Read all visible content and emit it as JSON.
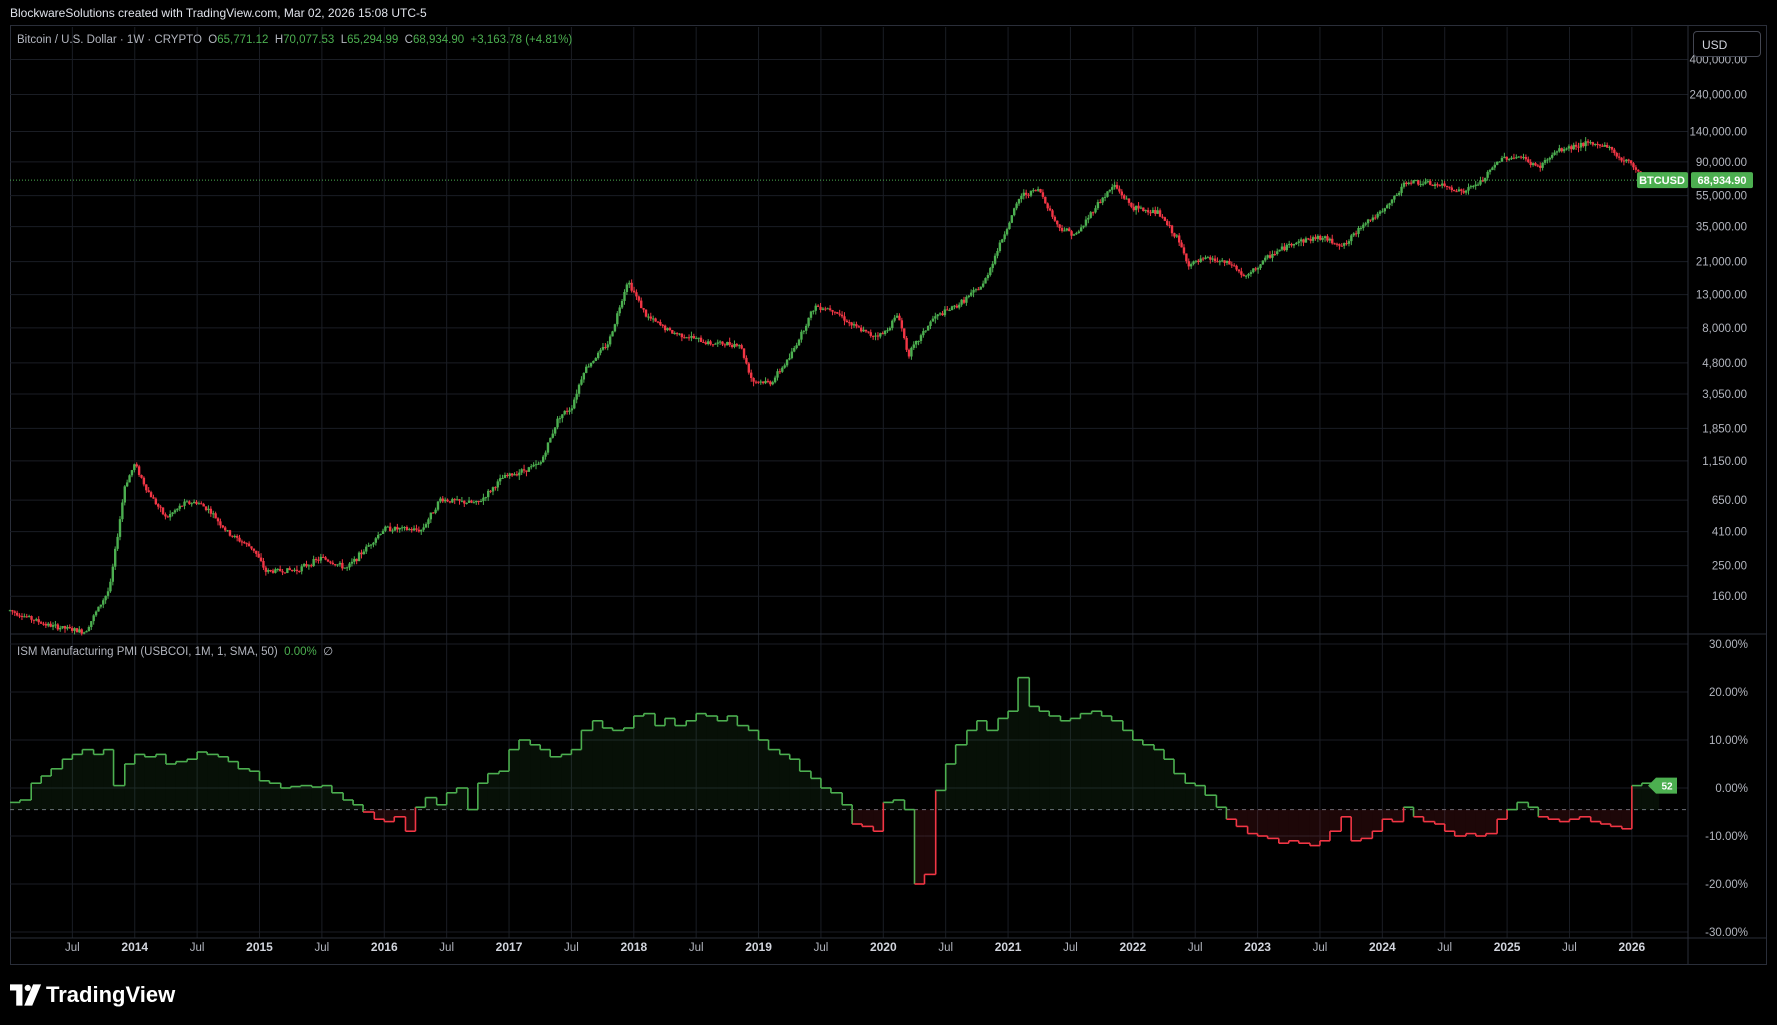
{
  "caption": "BlockwareSolutions created with TradingView.com, Mar 02, 2026 15:08 UTC-5",
  "legend_main": {
    "symbol": "Bitcoin / U.S. Dollar · 1W · CRYPTO",
    "o_label": "O",
    "o_value": "65,771.12",
    "h_label": "H",
    "h_value": "70,077.53",
    "l_label": "L",
    "l_value": "65,294.99",
    "c_label": "C",
    "c_value": "68,934.90",
    "change": "+3,163.78 (+4.81%)"
  },
  "legend_indicator": {
    "name": "ISM Manufacturing PMI (USBCOI, 1M, 1, SMA, 50)",
    "value": "0.00%",
    "extra": "∅"
  },
  "currency_button": "USD",
  "price_tag": {
    "symbol": "BTCUSD",
    "value": "68,934.90"
  },
  "pmi_tag": "52",
  "brand": "TradingView",
  "colors": {
    "up": "#4caf50",
    "down": "#f23645",
    "background": "#000000",
    "grid": "#1a1d24"
  },
  "chart_data": [
    {
      "type": "candlestick",
      "title": "Bitcoin / U.S. Dollar",
      "scale": "log",
      "y_ticks": [
        "400,000.00",
        "240,000.00",
        "140,000.00",
        "90,000.00",
        "55,000.00",
        "35,000.00",
        "21,000.00",
        "13,000.00",
        "8,000.00",
        "4,800.00",
        "3,050.00",
        "1,850.00",
        "1,150.00",
        "650.00",
        "410.00",
        "250.00",
        "160.00"
      ],
      "y_tick_values": [
        400000,
        240000,
        140000,
        90000,
        55000,
        35000,
        21000,
        13000,
        8000,
        4800,
        3050,
        1850,
        1150,
        650,
        410,
        250,
        160
      ],
      "x_ticks": [
        "Jul",
        "2014",
        "Jul",
        "2015",
        "Jul",
        "2016",
        "Jul",
        "2017",
        "Jul",
        "2018",
        "Jul",
        "2019",
        "Jul",
        "2020",
        "Jul",
        "2021",
        "Jul",
        "2022",
        "Jul",
        "2023",
        "Jul",
        "2024",
        "Jul",
        "2025",
        "Jul",
        "2026"
      ],
      "x_tick_years": [
        2013.5,
        2014,
        2014.5,
        2015,
        2015.5,
        2016,
        2016.5,
        2017,
        2017.5,
        2018,
        2018.5,
        2019,
        2019.5,
        2020,
        2020.5,
        2021,
        2021.5,
        2022,
        2022.5,
        2023,
        2023.5,
        2024,
        2024.5,
        2025,
        2025.5,
        2026
      ],
      "last_price": 68934.9,
      "anchors": [
        [
          2013.0,
          130
        ],
        [
          2013.3,
          105
        ],
        [
          2013.6,
          95
        ],
        [
          2013.8,
          180
        ],
        [
          2013.92,
          800
        ],
        [
          2014.0,
          1100
        ],
        [
          2014.1,
          750
        ],
        [
          2014.25,
          500
        ],
        [
          2014.4,
          620
        ],
        [
          2014.5,
          630
        ],
        [
          2014.6,
          560
        ],
        [
          2014.75,
          400
        ],
        [
          2014.95,
          320
        ],
        [
          2015.05,
          230
        ],
        [
          2015.3,
          235
        ],
        [
          2015.5,
          280
        ],
        [
          2015.7,
          240
        ],
        [
          2015.85,
          320
        ],
        [
          2016.0,
          430
        ],
        [
          2016.3,
          420
        ],
        [
          2016.45,
          660
        ],
        [
          2016.55,
          640
        ],
        [
          2016.75,
          620
        ],
        [
          2016.95,
          900
        ],
        [
          2017.05,
          960
        ],
        [
          2017.25,
          1100
        ],
        [
          2017.4,
          2200
        ],
        [
          2017.5,
          2500
        ],
        [
          2017.6,
          4300
        ],
        [
          2017.8,
          6500
        ],
        [
          2017.95,
          16000
        ],
        [
          2018.0,
          13500
        ],
        [
          2018.1,
          9500
        ],
        [
          2018.3,
          7500
        ],
        [
          2018.45,
          7000
        ],
        [
          2018.6,
          6400
        ],
        [
          2018.85,
          6300
        ],
        [
          2018.95,
          3700
        ],
        [
          2019.1,
          3600
        ],
        [
          2019.25,
          5200
        ],
        [
          2019.45,
          11000
        ],
        [
          2019.6,
          10500
        ],
        [
          2019.75,
          8300
        ],
        [
          2019.9,
          7200
        ],
        [
          2020.0,
          7300
        ],
        [
          2020.12,
          9800
        ],
        [
          2020.2,
          5400
        ],
        [
          2020.4,
          9200
        ],
        [
          2020.6,
          11200
        ],
        [
          2020.8,
          15000
        ],
        [
          2020.95,
          29000
        ],
        [
          2021.1,
          55000
        ],
        [
          2021.25,
          60000
        ],
        [
          2021.4,
          35000
        ],
        [
          2021.55,
          31000
        ],
        [
          2021.7,
          47000
        ],
        [
          2021.85,
          64000
        ],
        [
          2022.0,
          46000
        ],
        [
          2022.2,
          43000
        ],
        [
          2022.35,
          30000
        ],
        [
          2022.45,
          20000
        ],
        [
          2022.6,
          22000
        ],
        [
          2022.8,
          20000
        ],
        [
          2022.9,
          16500
        ],
        [
          2023.1,
          23000
        ],
        [
          2023.3,
          28000
        ],
        [
          2023.5,
          30000
        ],
        [
          2023.7,
          26500
        ],
        [
          2023.85,
          37000
        ],
        [
          2024.0,
          43000
        ],
        [
          2024.2,
          68000
        ],
        [
          2024.5,
          63000
        ],
        [
          2024.65,
          58000
        ],
        [
          2024.8,
          68000
        ],
        [
          2024.95,
          95000
        ],
        [
          2025.1,
          97000
        ],
        [
          2025.25,
          83000
        ],
        [
          2025.4,
          105000
        ],
        [
          2025.6,
          117000
        ],
        [
          2025.8,
          114000
        ],
        [
          2025.9,
          95000
        ],
        [
          2026.0,
          88000
        ],
        [
          2026.1,
          70000
        ],
        [
          2026.17,
          68934.9
        ]
      ]
    },
    {
      "type": "area",
      "title": "ISM Manufacturing PMI",
      "y_ticks": [
        "30.00%",
        "20.00%",
        "10.00%",
        "0.00%",
        "-10.00%",
        "-20.00%",
        "-30.00%"
      ],
      "y_tick_values": [
        30,
        20,
        10,
        0,
        -10,
        -20,
        -30
      ],
      "baseline": -4.5,
      "points": [
        [
          2013.0,
          -3
        ],
        [
          2013.08,
          -2.5
        ],
        [
          2013.17,
          1
        ],
        [
          2013.25,
          2.5
        ],
        [
          2013.33,
          4
        ],
        [
          2013.42,
          6
        ],
        [
          2013.5,
          7
        ],
        [
          2013.58,
          8
        ],
        [
          2013.67,
          7
        ],
        [
          2013.75,
          8
        ],
        [
          2013.83,
          0.5
        ],
        [
          2013.92,
          5
        ],
        [
          2014.0,
          7
        ],
        [
          2014.08,
          6.5
        ],
        [
          2014.17,
          7
        ],
        [
          2014.25,
          5
        ],
        [
          2014.33,
          5.5
        ],
        [
          2014.42,
          6
        ],
        [
          2014.5,
          7.5
        ],
        [
          2014.58,
          7
        ],
        [
          2014.67,
          6.5
        ],
        [
          2014.75,
          5.5
        ],
        [
          2014.83,
          4
        ],
        [
          2014.92,
          3.5
        ],
        [
          2015.0,
          1.5
        ],
        [
          2015.08,
          1
        ],
        [
          2015.17,
          0
        ],
        [
          2015.25,
          0.3
        ],
        [
          2015.33,
          0.5
        ],
        [
          2015.42,
          0.2
        ],
        [
          2015.5,
          0.5
        ],
        [
          2015.58,
          -1
        ],
        [
          2015.67,
          -2.5
        ],
        [
          2015.75,
          -3.5
        ],
        [
          2015.83,
          -5
        ],
        [
          2015.92,
          -6.5
        ],
        [
          2016.0,
          -7
        ],
        [
          2016.08,
          -6
        ],
        [
          2016.17,
          -9
        ],
        [
          2016.25,
          -4
        ],
        [
          2016.33,
          -2
        ],
        [
          2016.42,
          -3.5
        ],
        [
          2016.5,
          -1
        ],
        [
          2016.58,
          0
        ],
        [
          2016.67,
          -4.5
        ],
        [
          2016.75,
          1
        ],
        [
          2016.83,
          3
        ],
        [
          2016.92,
          3.5
        ],
        [
          2017.0,
          8
        ],
        [
          2017.08,
          10
        ],
        [
          2017.17,
          9
        ],
        [
          2017.25,
          8
        ],
        [
          2017.33,
          6.5
        ],
        [
          2017.42,
          7
        ],
        [
          2017.5,
          8
        ],
        [
          2017.58,
          12
        ],
        [
          2017.67,
          14
        ],
        [
          2017.75,
          12.5
        ],
        [
          2017.83,
          12
        ],
        [
          2017.92,
          12.5
        ],
        [
          2018.0,
          15
        ],
        [
          2018.08,
          15.5
        ],
        [
          2018.17,
          13
        ],
        [
          2018.25,
          14.5
        ],
        [
          2018.33,
          13
        ],
        [
          2018.42,
          14
        ],
        [
          2018.5,
          15.5
        ],
        [
          2018.58,
          15
        ],
        [
          2018.67,
          14
        ],
        [
          2018.75,
          15
        ],
        [
          2018.83,
          13
        ],
        [
          2018.92,
          12
        ],
        [
          2019.0,
          10
        ],
        [
          2019.08,
          8
        ],
        [
          2019.17,
          7
        ],
        [
          2019.25,
          6
        ],
        [
          2019.33,
          3.5
        ],
        [
          2019.42,
          2
        ],
        [
          2019.5,
          0
        ],
        [
          2019.58,
          -1
        ],
        [
          2019.67,
          -3.5
        ],
        [
          2019.75,
          -7.5
        ],
        [
          2019.83,
          -8
        ],
        [
          2019.92,
          -9
        ],
        [
          2020.0,
          -3
        ],
        [
          2020.08,
          -2.5
        ],
        [
          2020.17,
          -4.5
        ],
        [
          2020.25,
          -20
        ],
        [
          2020.33,
          -18
        ],
        [
          2020.42,
          -0.5
        ],
        [
          2020.5,
          5
        ],
        [
          2020.58,
          9
        ],
        [
          2020.67,
          12
        ],
        [
          2020.75,
          14
        ],
        [
          2020.83,
          12
        ],
        [
          2020.92,
          14.5
        ],
        [
          2021.0,
          16
        ],
        [
          2021.08,
          23
        ],
        [
          2021.17,
          17
        ],
        [
          2021.25,
          16
        ],
        [
          2021.33,
          15
        ],
        [
          2021.42,
          14
        ],
        [
          2021.5,
          14.5
        ],
        [
          2021.58,
          15.5
        ],
        [
          2021.67,
          16
        ],
        [
          2021.75,
          15
        ],
        [
          2021.83,
          14
        ],
        [
          2021.92,
          12
        ],
        [
          2022.0,
          10
        ],
        [
          2022.08,
          9
        ],
        [
          2022.17,
          8
        ],
        [
          2022.25,
          6
        ],
        [
          2022.33,
          3
        ],
        [
          2022.42,
          1
        ],
        [
          2022.5,
          0.5
        ],
        [
          2022.58,
          -1.5
        ],
        [
          2022.67,
          -4
        ],
        [
          2022.75,
          -6.5
        ],
        [
          2022.83,
          -8
        ],
        [
          2022.92,
          -9.5
        ],
        [
          2023.0,
          -10
        ],
        [
          2023.08,
          -10.5
        ],
        [
          2023.17,
          -11.5
        ],
        [
          2023.25,
          -11
        ],
        [
          2023.33,
          -11.5
        ],
        [
          2023.42,
          -12
        ],
        [
          2023.5,
          -11
        ],
        [
          2023.58,
          -9
        ],
        [
          2023.67,
          -6
        ],
        [
          2023.75,
          -11
        ],
        [
          2023.83,
          -10.5
        ],
        [
          2023.92,
          -9
        ],
        [
          2024.0,
          -6.5
        ],
        [
          2024.08,
          -7
        ],
        [
          2024.17,
          -4
        ],
        [
          2024.25,
          -6
        ],
        [
          2024.33,
          -7
        ],
        [
          2024.42,
          -7.5
        ],
        [
          2024.5,
          -9
        ],
        [
          2024.58,
          -10
        ],
        [
          2024.67,
          -9.5
        ],
        [
          2024.75,
          -10
        ],
        [
          2024.83,
          -9.5
        ],
        [
          2024.92,
          -6.5
        ],
        [
          2025.0,
          -4.5
        ],
        [
          2025.08,
          -3
        ],
        [
          2025.17,
          -4
        ],
        [
          2025.25,
          -6
        ],
        [
          2025.33,
          -6.5
        ],
        [
          2025.42,
          -7
        ],
        [
          2025.5,
          -6.5
        ],
        [
          2025.58,
          -6
        ],
        [
          2025.67,
          -7
        ],
        [
          2025.75,
          -7.5
        ],
        [
          2025.83,
          -8
        ],
        [
          2025.92,
          -8.5
        ],
        [
          2026.0,
          0.5
        ],
        [
          2026.08,
          1
        ],
        [
          2026.17,
          0.5
        ]
      ]
    }
  ]
}
